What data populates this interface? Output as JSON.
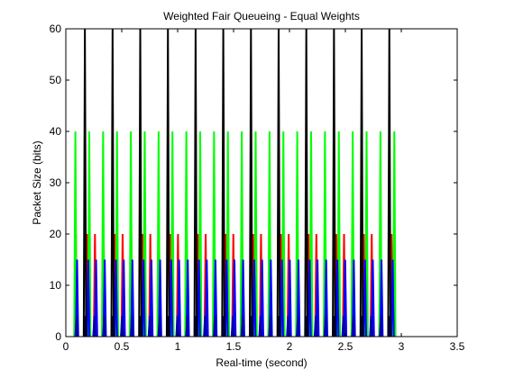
{
  "chart_data": {
    "type": "line",
    "title": "Weighted Fair Queueing - Equal Weights",
    "xlabel": "Real-time (second)",
    "ylabel": "Packet Size (bits)",
    "xlim": [
      0,
      3.5
    ],
    "ylim": [
      0,
      60
    ],
    "xticks": [
      0,
      0.5,
      1,
      1.5,
      2,
      2.5,
      3,
      3.5
    ],
    "xtick_labels": [
      "0",
      "0.5",
      "1",
      "1.5",
      "2",
      "2.5",
      "3",
      "3.5"
    ],
    "yticks": [
      0,
      10,
      20,
      30,
      40,
      50,
      60
    ],
    "ytick_labels": [
      "0",
      "10",
      "20",
      "30",
      "40",
      "50",
      "60"
    ],
    "grid": false,
    "legend": "none",
    "pulse_period": 0.021,
    "series": [
      {
        "color": "#ff0000",
        "height": 20,
        "start": 0.08,
        "cycle": 0.2475,
        "group_count": 3,
        "group_offsets": [
          0.0,
          0.1,
          0.17
        ],
        "last_start": 2.95
      },
      {
        "color": "#00ff00",
        "height": 40,
        "start": 0.075,
        "cycle": 0.124,
        "group_count": 1,
        "group_offsets": [
          0.0
        ],
        "last_start": 2.95
      },
      {
        "color": "#0000ff",
        "height": 15,
        "start": 0.09,
        "cycle": 0.2475,
        "group_count": 3,
        "group_offsets": [
          0.0,
          0.1,
          0.17
        ],
        "last_start": 2.95
      },
      {
        "color": "#0000b0",
        "height": 4,
        "start": 0.085,
        "cycle": 0.2475,
        "group_count": 3,
        "group_offsets": [
          0.0,
          0.08,
          0.16
        ],
        "last_start": 2.95
      },
      {
        "color": "#000000",
        "height": 60,
        "start": 0.16,
        "cycle": 0.2475,
        "group_count": 1,
        "group_offsets": [
          0.0
        ],
        "last_start": 3.0
      }
    ]
  }
}
